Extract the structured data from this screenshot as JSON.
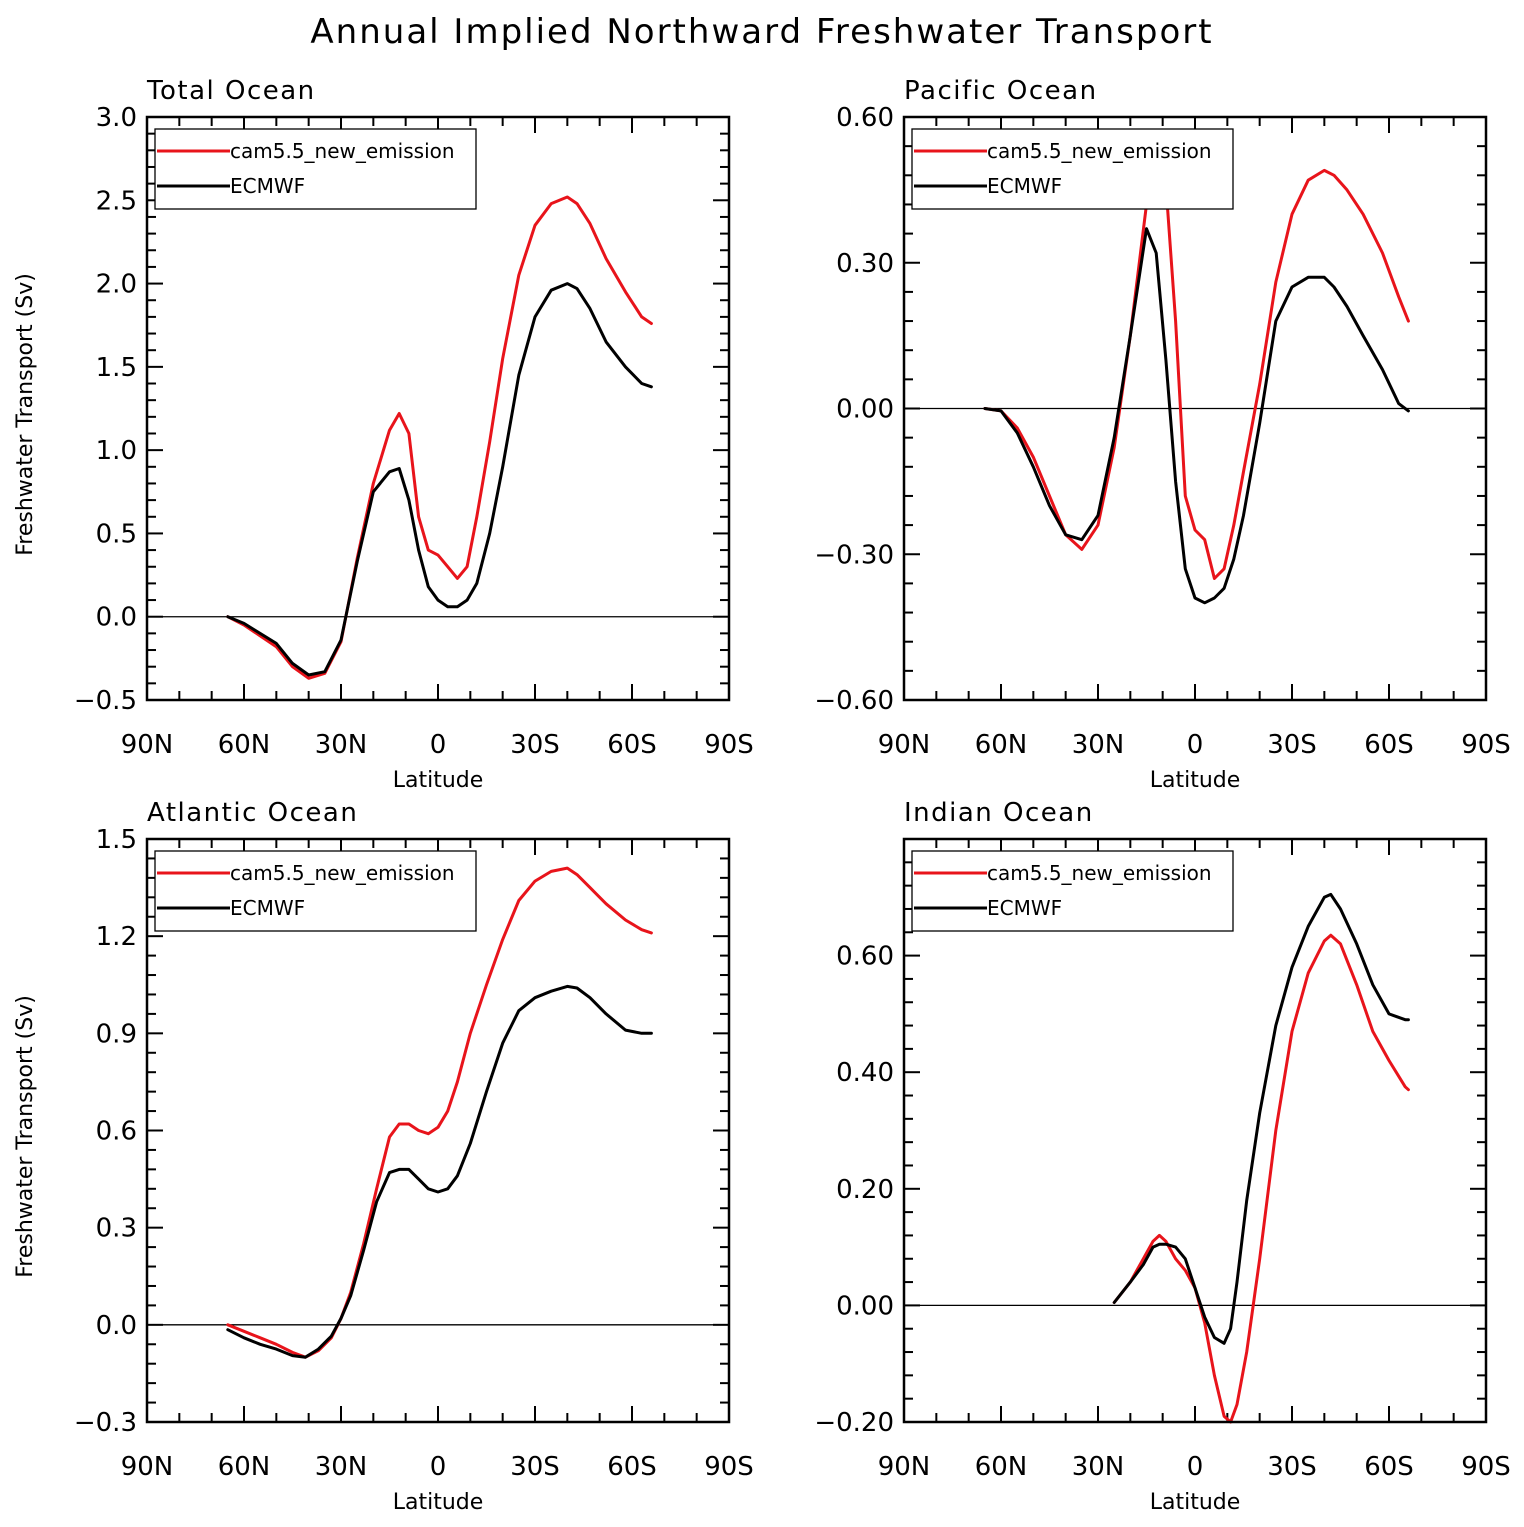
{
  "title": "Annual Implied Northward Freshwater Transport",
  "colors": {
    "model": "#e8141b",
    "obs": "#000000",
    "zero": "#000000"
  },
  "chart_data": [
    {
      "type": "line",
      "panel": "Total Ocean",
      "xlabel": "Latitude",
      "ylabel": "Freshwater Transport (Sv)",
      "x_ticks": [
        90,
        60,
        30,
        0,
        -30,
        -60,
        -90
      ],
      "x_tick_labels": [
        "90N",
        "60N",
        "30N",
        "0",
        "30S",
        "60S",
        "90S"
      ],
      "xlim": [
        90,
        -90
      ],
      "y_ticks": [
        -0.5,
        0.0,
        0.5,
        1.0,
        1.5,
        2.0,
        2.5,
        3.0
      ],
      "y_tick_labels": [
        "−0.5",
        "0.0",
        "0.5",
        "1.0",
        "1.5",
        "2.0",
        "2.5",
        "3.0"
      ],
      "ylim": [
        -0.5,
        3.0
      ],
      "legend": [
        "cam5.5_new_emission",
        "ECMWF"
      ],
      "series": [
        {
          "name": "cam5.5_new_emission",
          "color": "#e8141b",
          "x": [
            65,
            60,
            50,
            45,
            40,
            35,
            30,
            25,
            20,
            15,
            12,
            9,
            6,
            3,
            0,
            -3,
            -6,
            -9,
            -12,
            -16,
            -20,
            -25,
            -30,
            -35,
            -40,
            -43,
            -47,
            -52,
            -58,
            -63,
            -66
          ],
          "y": [
            0.0,
            -0.05,
            -0.18,
            -0.3,
            -0.37,
            -0.34,
            -0.15,
            0.35,
            0.8,
            1.12,
            1.22,
            1.1,
            0.6,
            0.4,
            0.37,
            0.3,
            0.23,
            0.3,
            0.6,
            1.05,
            1.55,
            2.05,
            2.35,
            2.48,
            2.52,
            2.48,
            2.36,
            2.15,
            1.95,
            1.8,
            1.76
          ]
        },
        {
          "name": "ECMWF",
          "color": "#000000",
          "x": [
            65,
            60,
            50,
            45,
            40,
            35,
            30,
            25,
            20,
            15,
            12,
            9,
            6,
            3,
            0,
            -3,
            -6,
            -9,
            -12,
            -16,
            -20,
            -25,
            -30,
            -35,
            -40,
            -43,
            -47,
            -52,
            -58,
            -63,
            -66
          ],
          "y": [
            0.0,
            -0.04,
            -0.16,
            -0.28,
            -0.35,
            -0.33,
            -0.14,
            0.33,
            0.75,
            0.87,
            0.89,
            0.7,
            0.4,
            0.18,
            0.1,
            0.06,
            0.06,
            0.1,
            0.2,
            0.5,
            0.9,
            1.45,
            1.8,
            1.96,
            2.0,
            1.97,
            1.85,
            1.65,
            1.5,
            1.4,
            1.38
          ]
        }
      ]
    },
    {
      "type": "line",
      "panel": "Pacific Ocean",
      "xlabel": "Latitude",
      "ylabel": "",
      "x_ticks": [
        90,
        60,
        30,
        0,
        -30,
        -60,
        -90
      ],
      "x_tick_labels": [
        "90N",
        "60N",
        "30N",
        "0",
        "30S",
        "60S",
        "90S"
      ],
      "xlim": [
        90,
        -90
      ],
      "y_ticks": [
        -0.6,
        -0.3,
        0.0,
        0.3,
        0.6
      ],
      "y_tick_labels": [
        "−0.60",
        "−0.30",
        "0.00",
        "0.30",
        "0.60"
      ],
      "ylim": [
        -0.6,
        0.6
      ],
      "legend": [
        "cam5.5_new_emission",
        "ECMWF"
      ],
      "series": [
        {
          "name": "cam5.5_new_emission",
          "color": "#e8141b",
          "x": [
            65,
            60,
            55,
            50,
            45,
            40,
            35,
            30,
            25,
            20,
            15,
            12,
            9,
            6,
            3,
            0,
            -3,
            -6,
            -9,
            -12,
            -15,
            -20,
            -25,
            -30,
            -35,
            -40,
            -43,
            -47,
            -52,
            -58,
            -63,
            -66
          ],
          "y": [
            0.0,
            -0.005,
            -0.04,
            -0.1,
            -0.18,
            -0.26,
            -0.29,
            -0.24,
            -0.08,
            0.15,
            0.42,
            0.52,
            0.46,
            0.18,
            -0.18,
            -0.25,
            -0.27,
            -0.35,
            -0.33,
            -0.24,
            -0.13,
            0.05,
            0.26,
            0.4,
            0.47,
            0.49,
            0.48,
            0.45,
            0.4,
            0.32,
            0.23,
            0.18
          ]
        },
        {
          "name": "ECMWF",
          "color": "#000000",
          "x": [
            65,
            60,
            55,
            50,
            45,
            40,
            35,
            30,
            25,
            20,
            15,
            12,
            9,
            6,
            3,
            0,
            -3,
            -6,
            -9,
            -12,
            -15,
            -20,
            -25,
            -30,
            -35,
            -40,
            -43,
            -47,
            -52,
            -58,
            -63,
            -66
          ],
          "y": [
            0.0,
            -0.005,
            -0.05,
            -0.12,
            -0.2,
            -0.26,
            -0.27,
            -0.22,
            -0.06,
            0.15,
            0.37,
            0.32,
            0.1,
            -0.15,
            -0.33,
            -0.39,
            -0.4,
            -0.39,
            -0.37,
            -0.31,
            -0.22,
            -0.03,
            0.18,
            0.25,
            0.27,
            0.27,
            0.25,
            0.21,
            0.15,
            0.08,
            0.01,
            -0.005
          ]
        }
      ]
    },
    {
      "type": "line",
      "panel": "Atlantic Ocean",
      "xlabel": "Latitude",
      "ylabel": "Freshwater Transport (Sv)",
      "x_ticks": [
        90,
        60,
        30,
        0,
        -30,
        -60,
        -90
      ],
      "x_tick_labels": [
        "90N",
        "60N",
        "30N",
        "0",
        "30S",
        "60S",
        "90S"
      ],
      "xlim": [
        90,
        -90
      ],
      "y_ticks": [
        -0.3,
        0.0,
        0.3,
        0.6,
        0.9,
        1.2,
        1.5
      ],
      "y_tick_labels": [
        "−0.3",
        "0.0",
        "0.3",
        "0.6",
        "0.9",
        "1.2",
        "1.5"
      ],
      "ylim": [
        -0.3,
        1.5
      ],
      "legend": [
        "cam5.5_new_emission",
        "ECMWF"
      ],
      "series": [
        {
          "name": "cam5.5_new_emission",
          "color": "#e8141b",
          "x": [
            65,
            60,
            55,
            50,
            45,
            41,
            37,
            33,
            30,
            27,
            23,
            19,
            15,
            12,
            9,
            6,
            3,
            0,
            -3,
            -6,
            -10,
            -15,
            -20,
            -25,
            -30,
            -35,
            -40,
            -43,
            -47,
            -52,
            -58,
            -63,
            -66
          ],
          "y": [
            0.0,
            -0.02,
            -0.04,
            -0.06,
            -0.085,
            -0.1,
            -0.08,
            -0.04,
            0.02,
            0.1,
            0.25,
            0.42,
            0.58,
            0.62,
            0.62,
            0.6,
            0.59,
            0.61,
            0.66,
            0.75,
            0.9,
            1.05,
            1.19,
            1.31,
            1.37,
            1.4,
            1.41,
            1.39,
            1.35,
            1.3,
            1.25,
            1.22,
            1.21
          ]
        },
        {
          "name": "ECMWF",
          "color": "#000000",
          "x": [
            65,
            60,
            55,
            50,
            45,
            41,
            37,
            33,
            30,
            27,
            23,
            19,
            15,
            12,
            9,
            6,
            3,
            0,
            -3,
            -6,
            -10,
            -15,
            -20,
            -25,
            -30,
            -35,
            -40,
            -43,
            -47,
            -52,
            -58,
            -63,
            -66
          ],
          "y": [
            -0.015,
            -0.04,
            -0.06,
            -0.075,
            -0.095,
            -0.1,
            -0.075,
            -0.035,
            0.02,
            0.09,
            0.23,
            0.38,
            0.47,
            0.48,
            0.48,
            0.45,
            0.42,
            0.41,
            0.42,
            0.46,
            0.56,
            0.72,
            0.87,
            0.97,
            1.01,
            1.03,
            1.045,
            1.04,
            1.01,
            0.96,
            0.91,
            0.9,
            0.9
          ]
        }
      ]
    },
    {
      "type": "line",
      "panel": "Indian Ocean",
      "xlabel": "Latitude",
      "ylabel": "",
      "x_ticks": [
        90,
        60,
        30,
        0,
        -30,
        -60,
        -90
      ],
      "x_tick_labels": [
        "90N",
        "60N",
        "30N",
        "0",
        "30S",
        "60S",
        "90S"
      ],
      "xlim": [
        90,
        -90
      ],
      "y_ticks": [
        -0.2,
        0.0,
        0.2,
        0.4,
        0.6
      ],
      "y_tick_labels": [
        "−0.20",
        "0.00",
        "0.20",
        "0.40",
        "0.60"
      ],
      "ylim": [
        -0.2,
        0.8
      ],
      "legend": [
        "cam5.5_new_emission",
        "ECMWF"
      ],
      "series": [
        {
          "name": "cam5.5_new_emission",
          "color": "#e8141b",
          "x": [
            25,
            20,
            16,
            13,
            11,
            9,
            6,
            3,
            0,
            -3,
            -6,
            -9,
            -11,
            -13,
            -16,
            -20,
            -25,
            -30,
            -35,
            -40,
            -42,
            -45,
            -50,
            -55,
            -60,
            -65,
            -66
          ],
          "y": [
            0.005,
            0.04,
            0.08,
            0.11,
            0.12,
            0.11,
            0.08,
            0.06,
            0.03,
            -0.03,
            -0.12,
            -0.19,
            -0.2,
            -0.17,
            -0.08,
            0.08,
            0.3,
            0.47,
            0.57,
            0.625,
            0.635,
            0.62,
            0.55,
            0.47,
            0.42,
            0.375,
            0.37
          ]
        },
        {
          "name": "ECMWF",
          "color": "#000000",
          "x": [
            25,
            20,
            16,
            13,
            11,
            9,
            6,
            3,
            0,
            -3,
            -6,
            -9,
            -11,
            -13,
            -16,
            -20,
            -25,
            -30,
            -35,
            -40,
            -42,
            -45,
            -50,
            -55,
            -60,
            -65,
            -66
          ],
          "y": [
            0.005,
            0.04,
            0.07,
            0.1,
            0.105,
            0.105,
            0.1,
            0.08,
            0.03,
            -0.02,
            -0.055,
            -0.065,
            -0.04,
            0.04,
            0.18,
            0.33,
            0.48,
            0.58,
            0.65,
            0.7,
            0.705,
            0.68,
            0.62,
            0.55,
            0.5,
            0.49,
            0.49
          ]
        }
      ]
    }
  ]
}
